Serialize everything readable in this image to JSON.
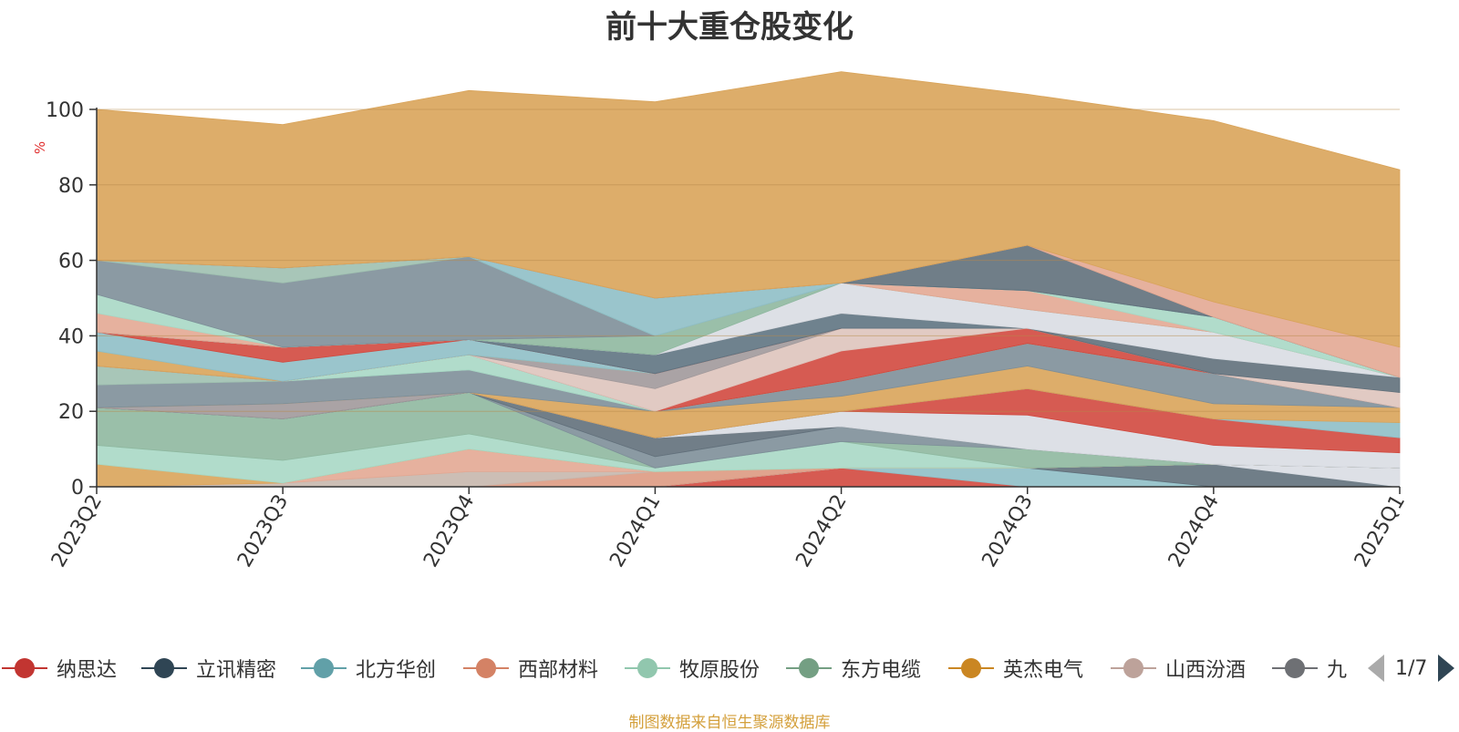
{
  "chart_data": {
    "type": "area",
    "stacked": true,
    "percent_stacked": true,
    "title": "前十大重仓股变化",
    "ylabel": "%",
    "ylim": [
      0,
      100
    ],
    "yticks": [
      "0",
      "20",
      "40",
      "60",
      "80",
      "100"
    ],
    "grid": true,
    "categories": [
      "2023Q2",
      "2023Q3",
      "2023Q4",
      "2024Q1",
      "2024Q2",
      "2024Q3",
      "2024Q4",
      "2025Q1"
    ],
    "series": [
      {
        "name": "纳思达",
        "color": "#d1493f",
        "values": [
          0,
          0,
          0,
          0,
          5,
          0,
          0,
          0
        ]
      },
      {
        "name": "",
        "color": "#8fbfc6",
        "values": [
          0,
          0,
          0,
          0,
          0,
          5,
          0,
          0
        ]
      },
      {
        "name": "",
        "color": "#61707b",
        "values": [
          0,
          0,
          0,
          0,
          0,
          0,
          6,
          0
        ]
      },
      {
        "name": "",
        "color": "#d9dde3",
        "values": [
          0,
          0,
          0,
          0,
          0,
          0,
          0,
          5
        ]
      },
      {
        "name": "西部材料",
        "color": "#dd9a82",
        "values": [
          0,
          0,
          0,
          4,
          0,
          0,
          0,
          0
        ]
      },
      {
        "name": "",
        "color": "#c6b7ad",
        "values": [
          0,
          1,
          4,
          0,
          0,
          0,
          0,
          0
        ]
      },
      {
        "name": "",
        "color": "#e3a893",
        "values": [
          0,
          0,
          6,
          0,
          0,
          0,
          0,
          0
        ]
      },
      {
        "name": "英杰电气",
        "color": "#d9a45a",
        "values": [
          6,
          0,
          0,
          0,
          0,
          0,
          0,
          0
        ]
      },
      {
        "name": "牧原股份",
        "color": "#a8d8c5",
        "values": [
          5,
          6,
          4,
          1,
          7,
          0,
          0,
          0
        ]
      },
      {
        "name": "东方电缆",
        "color": "#8fb8a0",
        "values": [
          10,
          11,
          11,
          0,
          0,
          5,
          0,
          0
        ]
      },
      {
        "name": "",
        "color": "#7e8f99",
        "values": [
          0,
          0,
          0,
          3,
          4,
          0,
          0,
          0
        ]
      },
      {
        "name": "",
        "color": "#62707b",
        "values": [
          0,
          0,
          0,
          5,
          0,
          0,
          0,
          0
        ]
      },
      {
        "name": "山西汾酒",
        "color": "#a1999b",
        "values": [
          0,
          4,
          0,
          0,
          0,
          0,
          0,
          0
        ]
      },
      {
        "name": "",
        "color": "#d9dde3",
        "values": [
          0,
          0,
          0,
          0,
          4,
          9,
          5,
          4
        ]
      },
      {
        "name": "",
        "color": "#d1493f",
        "values": [
          0,
          0,
          0,
          0,
          0,
          7,
          7,
          4
        ]
      },
      {
        "name": "",
        "color": "#8fbfc6",
        "values": [
          0,
          0,
          0,
          0,
          0,
          0,
          0,
          4
        ]
      },
      {
        "name": "",
        "color": "#d9a45a",
        "values": [
          0,
          0,
          0,
          7,
          4,
          6,
          4,
          4
        ]
      },
      {
        "name": "",
        "color": "#7e8f99",
        "values": [
          6,
          6,
          6,
          0,
          4,
          6,
          8,
          0
        ]
      },
      {
        "name": "",
        "color": "#9fc0b0",
        "values": [
          5,
          0,
          0,
          0,
          0,
          0,
          0,
          0
        ]
      },
      {
        "name": "",
        "color": "#a8d8c5",
        "values": [
          0,
          0,
          4,
          0,
          0,
          0,
          0,
          0
        ]
      },
      {
        "name": "",
        "color": "#d1493f",
        "values": [
          0,
          0,
          0,
          0,
          8,
          4,
          0,
          0
        ]
      },
      {
        "name": "",
        "color": "#dec4bd",
        "values": [
          0,
          0,
          0,
          6,
          6,
          0,
          0,
          0
        ]
      },
      {
        "name": "",
        "color": "#a1999b",
        "values": [
          0,
          0,
          0,
          4,
          0,
          0,
          0,
          0
        ]
      },
      {
        "name": "",
        "color": "#d9a45a",
        "values": [
          4,
          0,
          0,
          0,
          0,
          0,
          0,
          0
        ]
      },
      {
        "name": "北方华创",
        "color": "#8fbfc6",
        "values": [
          5,
          5,
          4,
          0,
          0,
          0,
          0,
          0
        ]
      },
      {
        "name": "",
        "color": "#d1493f",
        "values": [
          0,
          4,
          0,
          0,
          0,
          0,
          0,
          0
        ]
      },
      {
        "name": "",
        "color": "#5f7482",
        "values": [
          0,
          0,
          0,
          5,
          4,
          0,
          0,
          0
        ]
      },
      {
        "name": "",
        "color": "#dec4bd",
        "values": [
          0,
          0,
          0,
          0,
          0,
          0,
          0,
          4
        ]
      },
      {
        "name": "",
        "color": "#61707b",
        "values": [
          0,
          0,
          0,
          0,
          0,
          0,
          4,
          4
        ]
      },
      {
        "name": "",
        "color": "#d9dde3",
        "values": [
          0,
          0,
          0,
          0,
          8,
          5,
          7,
          0
        ]
      },
      {
        "name": "",
        "color": "#8fb8a0",
        "values": [
          0,
          0,
          0,
          5,
          0,
          0,
          0,
          0
        ]
      },
      {
        "name": "",
        "color": "#e3a893",
        "values": [
          5,
          0,
          0,
          0,
          0,
          5,
          0,
          0
        ]
      },
      {
        "name": "",
        "color": "#a8d8c5",
        "values": [
          5,
          0,
          0,
          0,
          0,
          0,
          4,
          0
        ]
      },
      {
        "name": "立讯精密",
        "color": "#7e8f99",
        "values": [
          9,
          17,
          22,
          0,
          0,
          0,
          0,
          0
        ]
      },
      {
        "name": "",
        "color": "#9fc0b0",
        "values": [
          0,
          4,
          0,
          0,
          0,
          0,
          0,
          0
        ]
      },
      {
        "name": "",
        "color": "#8fbfc6",
        "values": [
          0,
          0,
          0,
          10,
          0,
          0,
          0,
          0
        ]
      },
      {
        "name": "",
        "color": "#61707b",
        "values": [
          0,
          0,
          0,
          0,
          0,
          12,
          0,
          0
        ]
      },
      {
        "name": "",
        "color": "#e3a893",
        "values": [
          0,
          0,
          0,
          0,
          0,
          0,
          4,
          8
        ]
      },
      {
        "name": "九",
        "color": "#d9a45a",
        "values": [
          40,
          38,
          44,
          52,
          56,
          40,
          48,
          47
        ]
      }
    ]
  },
  "legend": {
    "items": [
      {
        "label": "纳思达",
        "color": "#c23531"
      },
      {
        "label": "立讯精密",
        "color": "#2f4554"
      },
      {
        "label": "北方华创",
        "color": "#61a0a8"
      },
      {
        "label": "西部材料",
        "color": "#d48265"
      },
      {
        "label": "牧原股份",
        "color": "#91c7ae"
      },
      {
        "label": "东方电缆",
        "color": "#749f83"
      },
      {
        "label": "英杰电气",
        "color": "#ca8622"
      },
      {
        "label": "山西汾酒",
        "color": "#bda29a"
      },
      {
        "label": "九",
        "color": "#6e7074"
      }
    ],
    "page": "1/7"
  },
  "source": "制图数据来自恒生聚源数据库"
}
